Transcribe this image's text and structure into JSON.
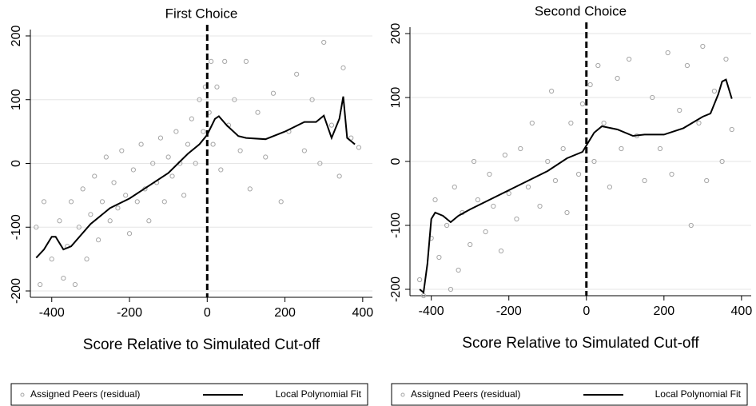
{
  "chart_data": [
    {
      "type": "scatter",
      "title": "First Choice",
      "x_label": "Score Relative to Simulated Cut-off",
      "xlim": [
        -455,
        425
      ],
      "ylim": [
        -210,
        215
      ],
      "xticks": [
        -400,
        -200,
        0,
        200,
        400
      ],
      "yticks": [
        -200,
        -100,
        0,
        100,
        200
      ],
      "grid": true,
      "cutoff": 0,
      "series": [
        {
          "name": "Assigned Peers (residual)",
          "style": "markers",
          "color": "#a6a6a6",
          "x": [
            -440,
            -430,
            -420,
            -400,
            -380,
            -370,
            -360,
            -350,
            -340,
            -330,
            -320,
            -310,
            -300,
            -290,
            -280,
            -270,
            -260,
            -250,
            -240,
            -230,
            -220,
            -210,
            -200,
            -190,
            -180,
            -170,
            -160,
            -150,
            -140,
            -130,
            -120,
            -110,
            -100,
            -90,
            -80,
            -70,
            -60,
            -50,
            -40,
            -30,
            -20,
            -10,
            -5,
            5,
            10,
            15,
            25,
            35,
            45,
            55,
            70,
            85,
            100,
            110,
            130,
            150,
            170,
            190,
            210,
            230,
            250,
            270,
            290,
            300,
            320,
            340,
            350,
            370,
            390
          ],
          "y": [
            -100,
            -190,
            -60,
            -150,
            -90,
            -180,
            -130,
            -60,
            -190,
            -100,
            -40,
            -150,
            -80,
            -20,
            -120,
            -60,
            10,
            -90,
            -30,
            -70,
            20,
            -50,
            -110,
            -10,
            -60,
            30,
            -40,
            -90,
            0,
            -30,
            40,
            -60,
            10,
            -20,
            50,
            0,
            -50,
            30,
            70,
            0,
            100,
            50,
            120,
            80,
            160,
            30,
            120,
            -10,
            160,
            60,
            100,
            20,
            160,
            -40,
            80,
            10,
            110,
            -60,
            50,
            140,
            20,
            100,
            0,
            190,
            60,
            -20,
            150,
            40,
            25
          ]
        },
        {
          "name": "Local Polynomial Fit",
          "style": "line",
          "color": "#000000",
          "x": [
            -440,
            -420,
            -400,
            -390,
            -370,
            -350,
            -300,
            -250,
            -200,
            -150,
            -100,
            -50,
            -20,
            0,
            20,
            30,
            50,
            80,
            100,
            150,
            200,
            250,
            280,
            300,
            320,
            340,
            350,
            360,
            380
          ],
          "y": [
            -148,
            -135,
            -115,
            -115,
            -135,
            -130,
            -95,
            -70,
            -55,
            -35,
            -15,
            15,
            30,
            45,
            70,
            74,
            60,
            43,
            40,
            38,
            50,
            65,
            65,
            75,
            40,
            70,
            105,
            40,
            30
          ]
        }
      ]
    },
    {
      "type": "scatter",
      "title": "Second Choice",
      "x_label": "Score Relative to Simulated Cut-off",
      "xlim": [
        -455,
        425
      ],
      "ylim": [
        -210,
        215
      ],
      "xticks": [
        -400,
        -200,
        0,
        200,
        400
      ],
      "yticks": [
        -200,
        -100,
        0,
        100,
        200
      ],
      "grid": true,
      "cutoff": 0,
      "series": [
        {
          "name": "Assigned Peers (residual)",
          "style": "markers",
          "color": "#a6a6a6",
          "x": [
            -430,
            -420,
            -400,
            -390,
            -380,
            -360,
            -350,
            -340,
            -330,
            -320,
            -300,
            -290,
            -280,
            -260,
            -250,
            -240,
            -220,
            -210,
            -200,
            -180,
            -170,
            -150,
            -140,
            -120,
            -100,
            -90,
            -80,
            -60,
            -50,
            -40,
            -20,
            -10,
            10,
            20,
            30,
            45,
            60,
            80,
            90,
            110,
            130,
            150,
            170,
            190,
            210,
            220,
            240,
            260,
            270,
            290,
            300,
            310,
            330,
            350,
            360,
            375
          ],
          "y": [
            -185,
            -210,
            -120,
            -60,
            -150,
            -100,
            -200,
            -40,
            -170,
            -80,
            -130,
            0,
            -60,
            -110,
            -20,
            -70,
            -140,
            10,
            -50,
            -90,
            20,
            -40,
            60,
            -70,
            0,
            110,
            -30,
            20,
            -80,
            60,
            -20,
            90,
            120,
            0,
            150,
            60,
            -40,
            130,
            20,
            160,
            40,
            -30,
            100,
            20,
            170,
            -20,
            80,
            150,
            -100,
            60,
            180,
            -30,
            110,
            0,
            160,
            50
          ]
        },
        {
          "name": "Local Polynomial Fit",
          "style": "line",
          "color": "#000000",
          "x": [
            -430,
            -420,
            -410,
            -400,
            -390,
            -370,
            -350,
            -330,
            -300,
            -250,
            -200,
            -150,
            -100,
            -50,
            -10,
            0,
            20,
            40,
            80,
            120,
            150,
            200,
            250,
            300,
            320,
            340,
            350,
            360,
            375
          ],
          "y": [
            -200,
            -205,
            -160,
            -90,
            -80,
            -85,
            -95,
            -85,
            -75,
            -60,
            -45,
            -30,
            -15,
            5,
            15,
            25,
            45,
            55,
            50,
            40,
            42,
            42,
            52,
            70,
            75,
            105,
            125,
            128,
            98
          ]
        }
      ]
    }
  ]
}
